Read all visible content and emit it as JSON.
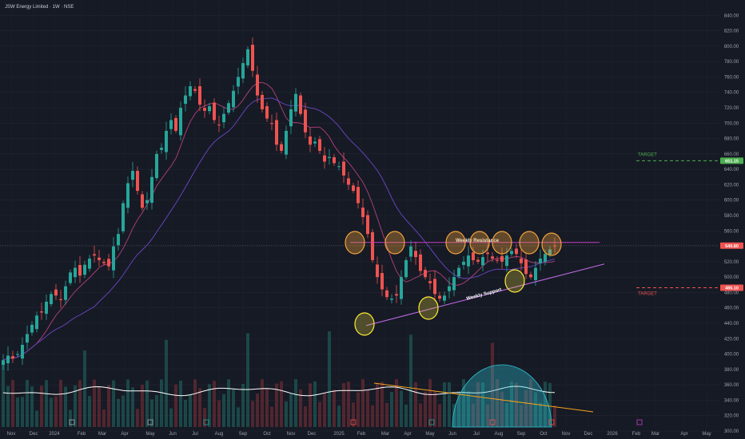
{
  "chart_data": {
    "type": "candlestick",
    "title": "JSW Energy Limited · 1W · NSE",
    "ylim": [
      300,
      860
    ],
    "yticks": [
      "840.00",
      "820.00",
      "800.00",
      "780.00",
      "760.00",
      "740.00",
      "720.00",
      "700.00",
      "680.00",
      "660.00",
      "640.00",
      "620.00",
      "600.00",
      "580.00",
      "560.00",
      "540.00",
      "520.00",
      "500.00",
      "480.00",
      "460.00",
      "440.00",
      "420.00",
      "400.00",
      "380.00",
      "360.00",
      "340.00",
      "320.00",
      "300.00"
    ],
    "xticks": [
      "Nov",
      "Dec",
      "2024",
      "Feb",
      "Mar",
      "Apr",
      "May",
      "Jun",
      "Jul",
      "Aug",
      "Sep",
      "Oct",
      "Nov",
      "Dec",
      "2025",
      "Feb",
      "Mar",
      "Apr",
      "May",
      "Jun",
      "Jul",
      "Aug",
      "Sep",
      "Oct",
      "Nov",
      "Dec",
      "2026",
      "Feb",
      "Mar",
      "Apr",
      "May",
      "Ju"
    ],
    "closes": [
      392,
      398,
      394,
      400,
      412,
      426,
      438,
      450,
      454,
      468,
      478,
      476,
      470,
      488,
      506,
      512,
      502,
      516,
      524,
      528,
      522,
      518,
      514,
      540,
      556,
      596,
      622,
      638,
      612,
      590,
      600,
      630,
      660,
      668,
      690,
      704,
      690,
      720,
      736,
      748,
      742,
      724,
      716,
      722,
      704,
      698,
      712,
      726,
      742,
      760,
      778,
      796,
      768,
      736,
      718,
      706,
      700,
      672,
      664,
      690,
      718,
      738,
      712,
      688,
      672,
      676,
      664,
      650,
      656,
      648,
      644,
      632,
      620,
      612,
      596,
      578,
      556,
      522,
      500,
      484,
      474,
      472,
      476,
      500,
      522,
      540,
      526,
      508,
      500,
      492,
      478,
      472,
      476,
      488,
      500,
      512,
      520,
      528,
      522,
      520,
      526,
      530,
      524,
      522,
      520,
      528,
      534,
      530,
      518,
      504,
      500,
      512,
      524,
      530,
      536,
      540
    ],
    "series": [
      {
        "name": "",
        "values": []
      }
    ],
    "levels": {
      "current_price": "540.80",
      "target_up": "651.15",
      "target_down": "486.10",
      "resistance": 545,
      "target_up_value": 651.15,
      "target_down_value": 486.1
    },
    "annotations": {
      "target_up_label": "TARGET",
      "target_down_label": "TARGET",
      "resistance_label": "Weekly Resistance",
      "support_label": "Weekly Support"
    },
    "legend": "none",
    "grid": true
  },
  "colors": {
    "bg": "#161a25",
    "up": "#26a69a",
    "down": "#ef5350",
    "ma_fast": "#b4417e",
    "ma_slow": "#6b47c4",
    "resistance": "#c43ec4",
    "support": "#c06be8",
    "target_up": "#4caf50",
    "target_down": "#ef5350",
    "orange": "#f2a33a",
    "yellow": "#ffeb3b",
    "oscillator": "#ffffff",
    "vol_trend": "#f7a21b",
    "dome": "#2fc5d6"
  }
}
